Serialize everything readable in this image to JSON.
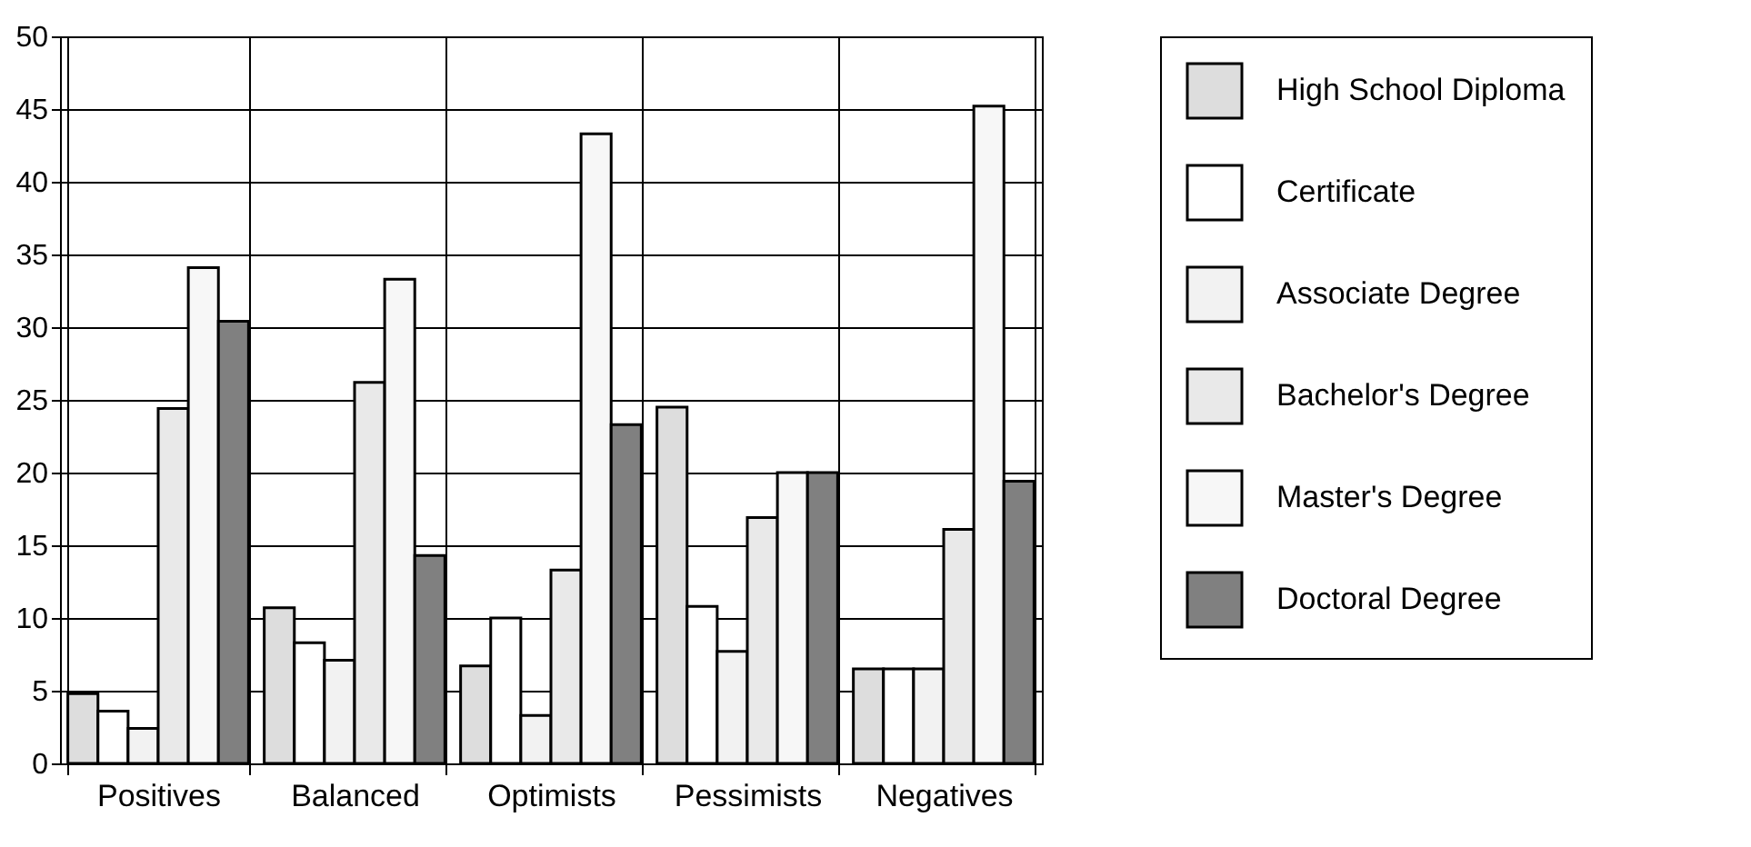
{
  "chart_data": {
    "type": "bar",
    "categories": [
      "Positives",
      "Balanced",
      "Optimists",
      "Pessimists",
      "Negatives"
    ],
    "series": [
      {
        "name": "High School Diploma",
        "color": "#dddddd",
        "values": [
          4.8,
          10.7,
          6.7,
          24.5,
          6.5
        ]
      },
      {
        "name": "Certificate",
        "color": "#ffffff",
        "values": [
          3.6,
          8.3,
          10.0,
          10.8,
          6.5
        ]
      },
      {
        "name": "Associate Degree",
        "color": "#f2f2f2",
        "values": [
          2.4,
          7.1,
          3.3,
          7.7,
          6.5
        ]
      },
      {
        "name": "Bachelor's Degree",
        "color": "#e9e9e9",
        "values": [
          24.4,
          26.2,
          13.3,
          16.9,
          16.1
        ]
      },
      {
        "name": "Master's Degree",
        "color": "#f7f7f7",
        "values": [
          34.1,
          33.3,
          43.3,
          20.0,
          45.2
        ]
      },
      {
        "name": "Doctoral Degree",
        "color": "#808080",
        "values": [
          30.4,
          14.3,
          23.3,
          20.0,
          19.4
        ]
      }
    ],
    "ylim": [
      0,
      50
    ],
    "yticks": [
      0,
      5,
      10,
      15,
      20,
      25,
      30,
      35,
      40,
      45,
      50
    ],
    "grid": true,
    "legend": "right"
  }
}
